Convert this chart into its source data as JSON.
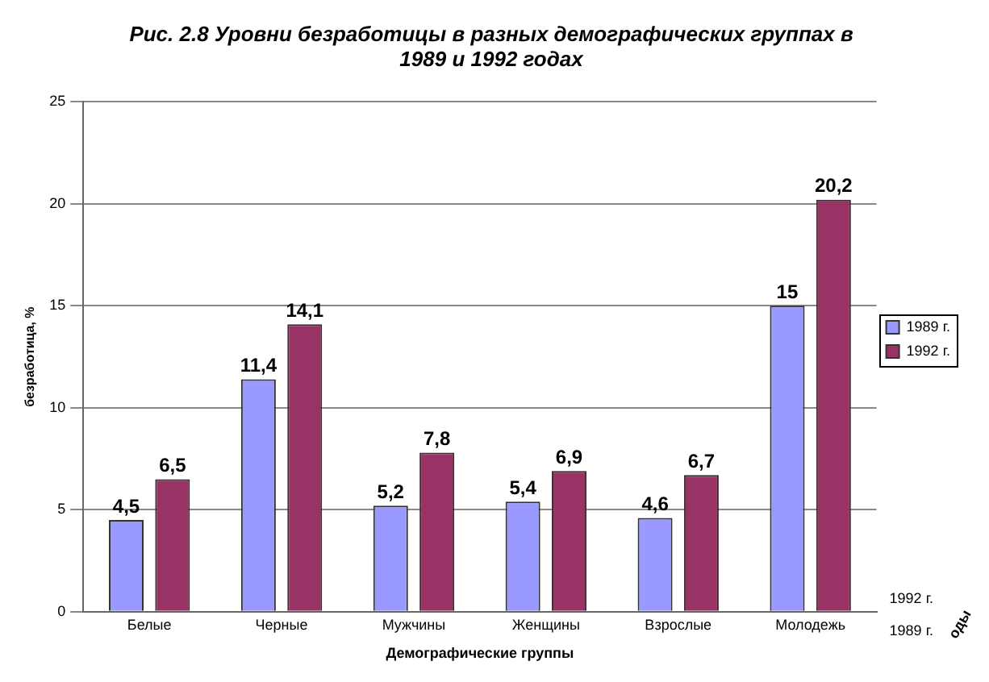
{
  "chart_data": {
    "type": "bar",
    "title": "Рис. 2.8 Уровни безработицы в разных демографических группах в 1989 и 1992 годах",
    "xlabel": "Демографические группы",
    "ylabel": "безработица, %",
    "categories": [
      "Белые",
      "Черные",
      "Мужчины",
      "Женщины",
      "Взрослые",
      "Молодежь"
    ],
    "series": [
      {
        "name": "1989 г.",
        "color": "#9999ff",
        "values": [
          4.5,
          11.4,
          5.2,
          5.4,
          4.6,
          15
        ],
        "value_labels": [
          "4,5",
          "11,4",
          "5,2",
          "5,4",
          "4,6",
          "15"
        ]
      },
      {
        "name": "1992 г.",
        "color": "#993366",
        "values": [
          6.5,
          14.1,
          7.8,
          6.9,
          6.7,
          20.2
        ],
        "value_labels": [
          "6,5",
          "14,1",
          "7,8",
          "6,9",
          "6,7",
          "20,2"
        ]
      }
    ],
    "ylim": [
      0,
      25
    ],
    "yticks": [
      0,
      5,
      10,
      15,
      20,
      25
    ],
    "grid": "y",
    "legend": "right",
    "annotations": [
      "1992 г.",
      "1989 г.",
      "оды"
    ]
  }
}
